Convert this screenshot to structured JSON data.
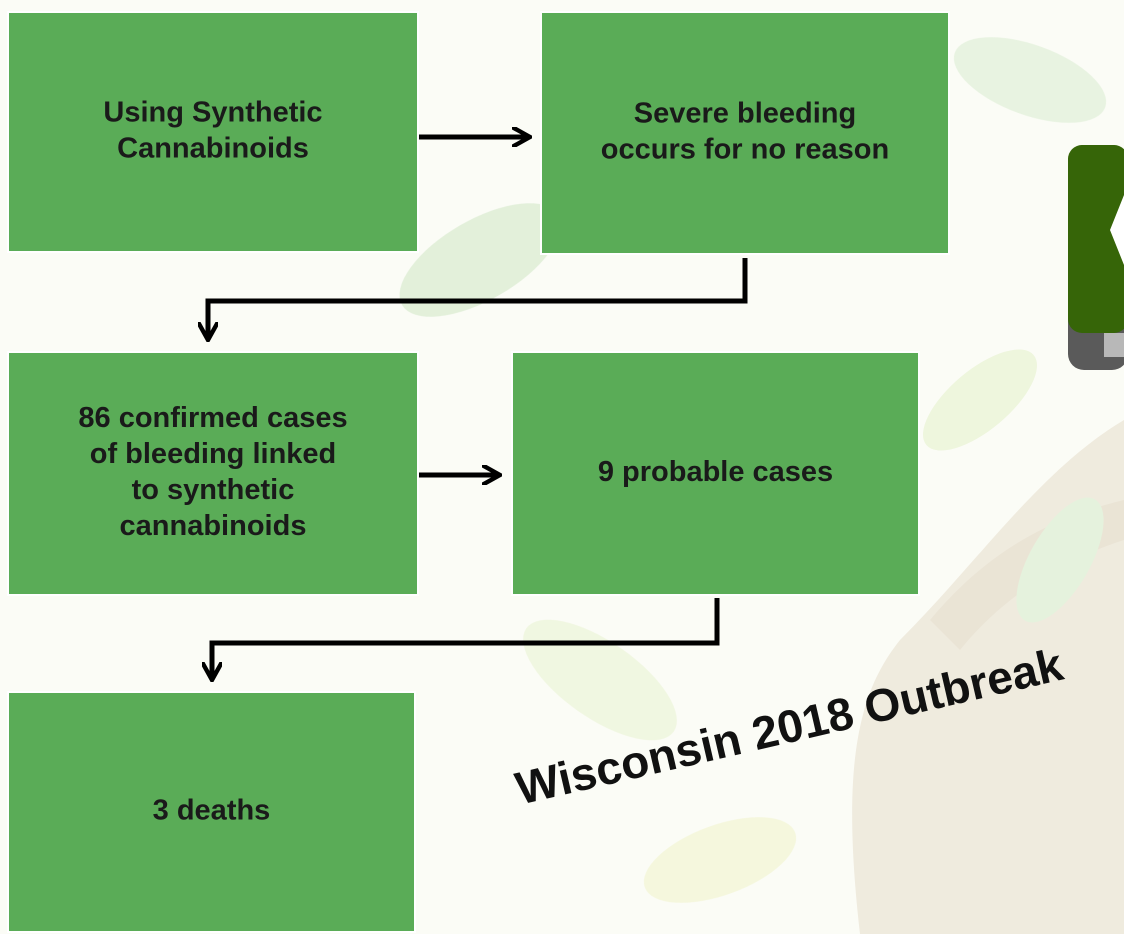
{
  "nodes": [
    {
      "lines": [
        "Using Synthetic",
        "Cannabinoids"
      ]
    },
    {
      "lines": [
        "Severe bleeding",
        "occurs for no reason"
      ]
    },
    {
      "lines": [
        "86 confirmed cases",
        "of bleeding linked",
        "to synthetic",
        "cannabinoids"
      ]
    },
    {
      "lines": [
        "9 probable cases"
      ]
    },
    {
      "lines": [
        "3 deaths"
      ]
    }
  ],
  "title": "Wisconsin 2018 Outbreak"
}
